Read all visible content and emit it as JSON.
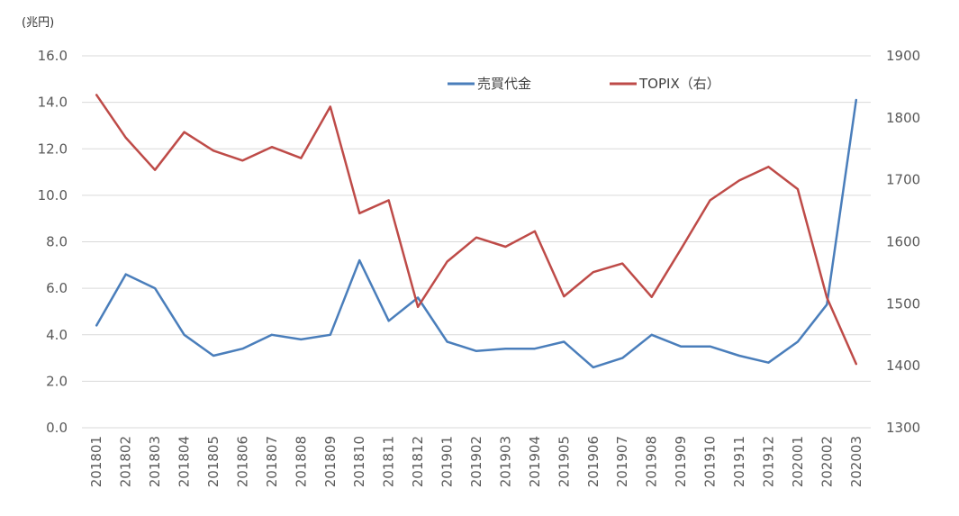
{
  "chart_data": {
    "type": "line",
    "unit_label": "(兆円)",
    "categories": [
      "201801",
      "201802",
      "201803",
      "201804",
      "201805",
      "201806",
      "201807",
      "201808",
      "201809",
      "201810",
      "201811",
      "201812",
      "201901",
      "201902",
      "201903",
      "201904",
      "201905",
      "201906",
      "201907",
      "201908",
      "201909",
      "201910",
      "201911",
      "201912",
      "202001",
      "202002",
      "202003"
    ],
    "y_left": {
      "min": 0,
      "max": 16,
      "step": 2,
      "ticks": [
        "0.0",
        "2.0",
        "4.0",
        "6.0",
        "8.0",
        "10.0",
        "12.0",
        "14.0",
        "16.0"
      ]
    },
    "y_right": {
      "min": 1300,
      "max": 1900,
      "step": 100,
      "ticks": [
        "1300",
        "1400",
        "1500",
        "1600",
        "1700",
        "1800",
        "1900"
      ]
    },
    "grid": true,
    "legend_position": "top-right",
    "series": [
      {
        "name": "売買代金",
        "axis": "left",
        "color": "#4a7ebb",
        "values": [
          4.4,
          6.6,
          6.0,
          4.0,
          3.1,
          3.4,
          4.0,
          3.8,
          4.0,
          7.2,
          4.6,
          5.6,
          3.7,
          3.3,
          3.4,
          3.4,
          3.7,
          2.6,
          3.0,
          4.0,
          3.5,
          3.5,
          3.1,
          2.8,
          3.7,
          5.3,
          14.1
        ]
      },
      {
        "name": "TOPIX（右）",
        "axis": "right",
        "color": "#be4b48",
        "values": [
          1837,
          1768,
          1716,
          1777,
          1747,
          1731,
          1753,
          1735,
          1818,
          1646,
          1667,
          1495,
          1568,
          1607,
          1592,
          1617,
          1512,
          1551,
          1565,
          1511,
          1588,
          1667,
          1699,
          1721,
          1685,
          1510,
          1403
        ]
      }
    ]
  }
}
